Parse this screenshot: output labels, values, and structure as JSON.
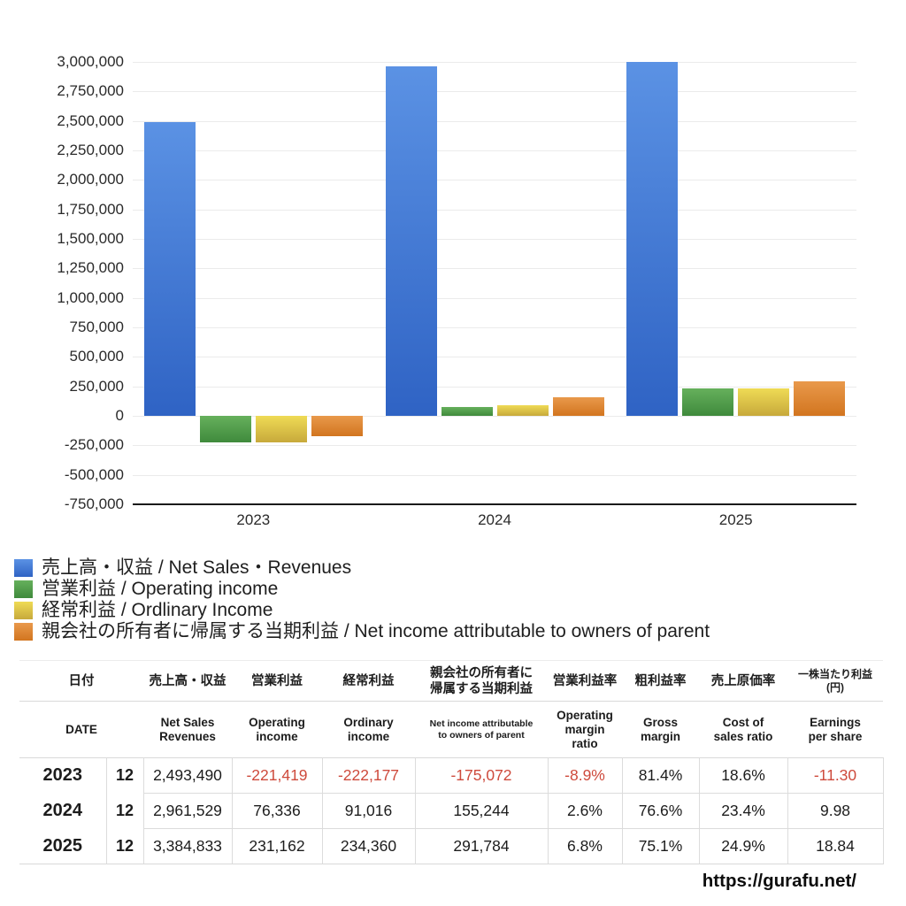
{
  "chart_data": {
    "type": "bar",
    "title": "",
    "xlabel": "",
    "ylabel": "",
    "categories": [
      "2023",
      "2024",
      "2025"
    ],
    "series": [
      {
        "key": "net-sales-revenues",
        "name": "売上高・収益 / Net Sales・Revenues",
        "color_top": "#5B92E4",
        "color_bottom": "#2F63C4",
        "values": [
          2493490,
          2961529,
          3384833
        ]
      },
      {
        "key": "operating-income",
        "name": "営業利益 / Operating income",
        "color_top": "#66B05C",
        "color_bottom": "#3F8A3C",
        "values": [
          -221419,
          76336,
          231162
        ]
      },
      {
        "key": "ordinary-income",
        "name": "経常利益 / Ordlinary Income",
        "color_top": "#EFDB55",
        "color_bottom": "#C7A93B",
        "values": [
          -222177,
          91016,
          234360
        ]
      },
      {
        "key": "net-income-parent",
        "name": "親会社の所有者に帰属する当期利益 / Net income attributable to owners of parent",
        "color_top": "#E9994B",
        "color_bottom": "#D2751F",
        "values": [
          -175072,
          155244,
          291784
        ]
      }
    ],
    "ylim": [
      -750000,
      3000000
    ],
    "ytick_step": 250000,
    "grid": true,
    "legend_position": "bottom-left"
  },
  "table": {
    "header_jp": [
      "日付",
      "売上高・収益",
      "営業利益",
      "経常利益",
      "親会社の所有者に\n帰属する当期利益",
      "営業利益率",
      "粗利益率",
      "売上原価率",
      "一株当たり利益\n(円)"
    ],
    "header_en": [
      "DATE",
      "Net Sales\nRevenues",
      "Operating\nincome",
      "Ordinary\nincome",
      "Net income attributable\nto owners of parent",
      "Operating\nmargin\nratio",
      "Gross\nmargin",
      "Cost of\nsales ratio",
      "Earnings\nper share"
    ],
    "rows": [
      {
        "year": "2023",
        "month": "12",
        "values": [
          "2,493,490",
          "-221,419",
          "-222,177",
          "-175,072",
          "-8.9%",
          "81.4%",
          "18.6%",
          "-11.30"
        ]
      },
      {
        "year": "2024",
        "month": "12",
        "values": [
          "2,961,529",
          "76,336",
          "91,016",
          "155,244",
          "2.6%",
          "76.6%",
          "23.4%",
          "9.98"
        ]
      },
      {
        "year": "2025",
        "month": "12",
        "values": [
          "3,384,833",
          "231,162",
          "234,360",
          "291,784",
          "6.8%",
          "75.1%",
          "24.9%",
          "18.84"
        ]
      }
    ],
    "negative_color": "#CE4A3C"
  },
  "footer": {
    "url": "https://gurafu.net/"
  }
}
